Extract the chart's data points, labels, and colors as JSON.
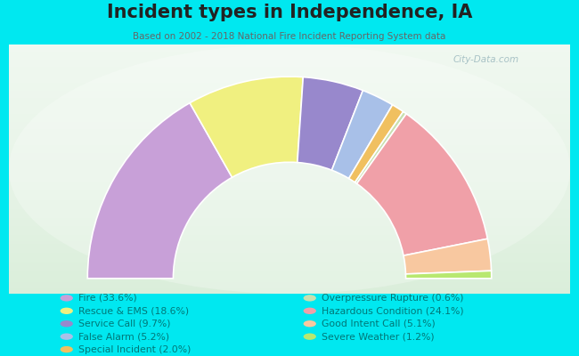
{
  "title": "Incident types in Independence, IA",
  "subtitle": "Based on 2002 - 2018 National Fire Incident Reporting System data",
  "segments": [
    {
      "label": "Fire (33.6%)",
      "value": 33.6,
      "color": "#c8a0d8"
    },
    {
      "label": "Rescue & EMS (18.6%)",
      "value": 18.6,
      "color": "#f0f080"
    },
    {
      "label": "Service Call (9.7%)",
      "value": 9.7,
      "color": "#9888cc"
    },
    {
      "label": "False Alarm (5.2%)",
      "value": 5.2,
      "color": "#a8c0e8"
    },
    {
      "label": "Special Incident (2.0%)",
      "value": 2.0,
      "color": "#f0c060"
    },
    {
      "label": "Overpressure Rupture (0.6%)",
      "value": 0.6,
      "color": "#c8e0b0"
    },
    {
      "label": "Hazardous Condition (24.1%)",
      "value": 24.1,
      "color": "#f0a0a8"
    },
    {
      "label": "Good Intent Call (5.1%)",
      "value": 5.1,
      "color": "#f8c8a0"
    },
    {
      "label": "Severe Weather (1.2%)",
      "value": 1.2,
      "color": "#b8e870"
    }
  ],
  "bg_color": "#00e8f0",
  "legend_color": "#007878",
  "title_color": "#222222",
  "subtitle_color": "#666666",
  "watermark": "City-Data.com",
  "grad_top": "#cce8cc",
  "grad_bottom": "#ddeedd"
}
